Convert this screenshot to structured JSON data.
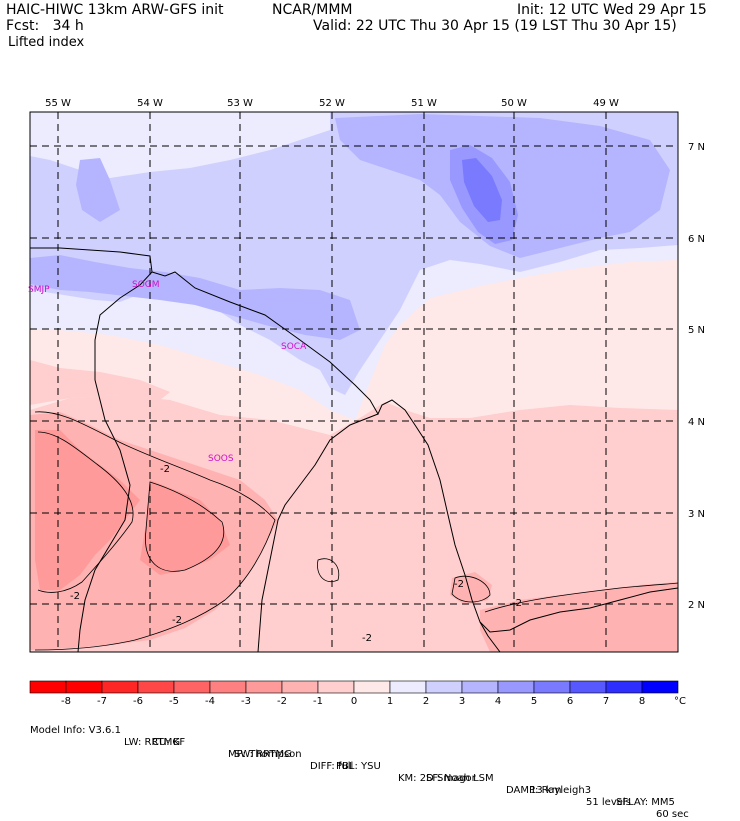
{
  "header": {
    "model": "HAIC-HIWC 13km ARW-GFS init",
    "org": "NCAR/MMM",
    "init": "Init: 12 UTC Wed 29 Apr 15",
    "fcst": "Fcst:   34 h",
    "valid": "Valid: 22 UTC Thu 30 Apr 15 (19 LST Thu 30 Apr 15)",
    "field": "Lifted index"
  },
  "map": {
    "lon_labels": [
      "55 W",
      "54 W",
      "53 W",
      "52 W",
      "51 W",
      "50 W",
      "49 W"
    ],
    "lat_labels": [
      "7 N",
      "6 N",
      "5 N",
      "4 N",
      "3 N",
      "2 N"
    ],
    "stations": [
      "SMJP",
      "SOGM",
      "SOCA",
      "SOOS"
    ],
    "contour_labels": [
      "-2",
      "-2",
      "-2",
      "-2",
      "-2",
      "-2"
    ]
  },
  "colorbar": {
    "ticks": [
      "-8",
      "-7",
      "-6",
      "-5",
      "-4",
      "-3",
      "-2",
      "-1",
      "0",
      "1",
      "2",
      "3",
      "4",
      "5",
      "6",
      "7",
      "8"
    ],
    "unit": "°C",
    "colors": [
      "#ff0000",
      "#ff2626",
      "#ff4747",
      "#ff6464",
      "#ff8080",
      "#ff9a9a",
      "#ffb2b2",
      "#ffcece",
      "#ffe8e8",
      "#ececfe",
      "#d0d0ff",
      "#b5b5ff",
      "#9898ff",
      "#7a7aff",
      "#5858ff",
      "#2e2eff",
      "#0000ff"
    ]
  },
  "footer": {
    "line1": [
      "Model Info: V3.6.1",
      "CU: KF",
      "MP: Thompson",
      "PBL: YSU",
      "SF: Noah LSM",
      "13 km",
      "51 levels",
      "60 sec"
    ],
    "line2": [
      "LW: RRTMG",
      "SW: RRTMG",
      "DIFF: full",
      "KM: 2D Smagor",
      "DAMP: Rayleigh3",
      "SFLAY: MM5"
    ]
  }
}
